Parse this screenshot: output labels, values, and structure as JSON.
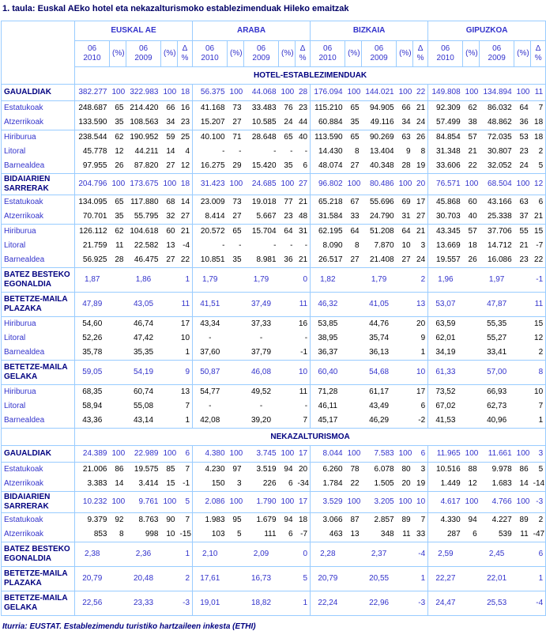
{
  "title": "1. taula: Euskal AEko hotel eta nekazalturismoko establezimenduak Hileko emaitzak",
  "source_note": "Iturria: EUSTAT. Establezimendu turistiko hartzaileen inkesta (ETHI)",
  "colors": {
    "title_navy": "#000066",
    "section_navy": "#000080",
    "accent_blue": "#3333CC",
    "value_black": "#000000",
    "border_light_blue": "#99CCFF",
    "background": "#FFFFFF"
  },
  "chart_data": {
    "type": "table",
    "title": "1. taula: Euskal AEko hotel eta nekazalturismoko establezimenduak Hileko emaitzak",
    "source": "Iturria: EUSTAT. Establezimendu turistiko hartzaileen inkesta (ETHI)",
    "region_groups": [
      "EUSKAL AE",
      "ARABA",
      "BIZKAIA",
      "GIPUZKOA"
    ],
    "sub_columns": [
      "06\n2010",
      "(%)",
      "06\n2009",
      "(%)",
      "Δ %"
    ],
    "sections": [
      {
        "banner": "HOTEL-ESTABLEZIMENDUAK",
        "rows": [
          {
            "label": "GAUALDIAK",
            "kind": "sec",
            "fmt": "int",
            "top": true,
            "values": [
              "382.277",
              "100",
              "322.983",
              "100",
              "18",
              "56.375",
              "100",
              "44.068",
              "100",
              "28",
              "176.094",
              "100",
              "144.021",
              "100",
              "22",
              "149.808",
              "100",
              "134.894",
              "100",
              "11"
            ]
          },
          {
            "label": "Estatukoak",
            "kind": "sub",
            "fmt": "int",
            "top": true,
            "values": [
              "248.687",
              "65",
              "214.420",
              "66",
              "16",
              "41.168",
              "73",
              "33.483",
              "76",
              "23",
              "115.210",
              "65",
              "94.905",
              "66",
              "21",
              "92.309",
              "62",
              "86.032",
              "64",
              "7"
            ]
          },
          {
            "label": "Atzerrikoak",
            "kind": "sub",
            "fmt": "int",
            "values": [
              "133.590",
              "35",
              "108.563",
              "34",
              "23",
              "15.207",
              "27",
              "10.585",
              "24",
              "44",
              "60.884",
              "35",
              "49.116",
              "34",
              "24",
              "57.499",
              "38",
              "48.862",
              "36",
              "18"
            ]
          },
          {
            "label": "Hiriburua",
            "kind": "sub",
            "fmt": "int",
            "top": true,
            "values": [
              "238.544",
              "62",
              "190.952",
              "59",
              "25",
              "40.100",
              "71",
              "28.648",
              "65",
              "40",
              "113.590",
              "65",
              "90.269",
              "63",
              "26",
              "84.854",
              "57",
              "72.035",
              "53",
              "18"
            ]
          },
          {
            "label": "Litoral",
            "kind": "sub",
            "fmt": "int",
            "values": [
              "45.778",
              "12",
              "44.211",
              "14",
              "4",
              "-",
              "-",
              "-",
              "-",
              "-",
              "14.430",
              "8",
              "13.404",
              "9",
              "8",
              "31.348",
              "21",
              "30.807",
              "23",
              "2"
            ]
          },
          {
            "label": "Barnealdea",
            "kind": "sub",
            "fmt": "int",
            "values": [
              "97.955",
              "26",
              "87.820",
              "27",
              "12",
              "16.275",
              "29",
              "15.420",
              "35",
              "6",
              "48.074",
              "27",
              "40.348",
              "28",
              "19",
              "33.606",
              "22",
              "32.052",
              "24",
              "5"
            ]
          },
          {
            "label": "BIDAIARIEN SARRERAK",
            "kind": "sec",
            "fmt": "int",
            "top": true,
            "values": [
              "204.796",
              "100",
              "173.675",
              "100",
              "18",
              "31.423",
              "100",
              "24.685",
              "100",
              "27",
              "96.802",
              "100",
              "80.486",
              "100",
              "20",
              "76.571",
              "100",
              "68.504",
              "100",
              "12"
            ]
          },
          {
            "label": "Estatukoak",
            "kind": "sub",
            "fmt": "int",
            "top": true,
            "values": [
              "134.095",
              "65",
              "117.880",
              "68",
              "14",
              "23.009",
              "73",
              "19.018",
              "77",
              "21",
              "65.218",
              "67",
              "55.696",
              "69",
              "17",
              "45.868",
              "60",
              "43.166",
              "63",
              "6"
            ]
          },
          {
            "label": "Atzerrikoak",
            "kind": "sub",
            "fmt": "int",
            "values": [
              "70.701",
              "35",
              "55.795",
              "32",
              "27",
              "8.414",
              "27",
              "5.667",
              "23",
              "48",
              "31.584",
              "33",
              "24.790",
              "31",
              "27",
              "30.703",
              "40",
              "25.338",
              "37",
              "21"
            ]
          },
          {
            "label": "Hiriburua",
            "kind": "sub",
            "fmt": "int",
            "top": true,
            "values": [
              "126.112",
              "62",
              "104.618",
              "60",
              "21",
              "20.572",
              "65",
              "15.704",
              "64",
              "31",
              "62.195",
              "64",
              "51.208",
              "64",
              "21",
              "43.345",
              "57",
              "37.706",
              "55",
              "15"
            ]
          },
          {
            "label": "Litoral",
            "kind": "sub",
            "fmt": "int",
            "values": [
              "21.759",
              "11",
              "22.582",
              "13",
              "-4",
              "-",
              "-",
              "-",
              "-",
              "-",
              "8.090",
              "8",
              "7.870",
              "10",
              "3",
              "13.669",
              "18",
              "14.712",
              "21",
              "-7"
            ]
          },
          {
            "label": "Barnealdea",
            "kind": "sub",
            "fmt": "int",
            "values": [
              "56.925",
              "28",
              "46.475",
              "27",
              "22",
              "10.851",
              "35",
              "8.981",
              "36",
              "21",
              "26.517",
              "27",
              "21.408",
              "27",
              "24",
              "19.557",
              "26",
              "16.086",
              "23",
              "22"
            ]
          },
          {
            "label": "BATEZ BESTEKO EGONALDIA",
            "kind": "sec",
            "fmt": "dec",
            "top": true,
            "values": [
              "1,87",
              "1,86",
              "1",
              "1,79",
              "1,79",
              "0",
              "1,82",
              "1,79",
              "2",
              "1,96",
              "1,97",
              "-1"
            ]
          },
          {
            "label": "BETETZE-MAILA PLAZAKA",
            "kind": "sec",
            "fmt": "dec",
            "top": true,
            "values": [
              "47,89",
              "43,05",
              "11",
              "41,51",
              "37,49",
              "11",
              "46,32",
              "41,05",
              "13",
              "53,07",
              "47,87",
              "11"
            ]
          },
          {
            "label": "Hiriburua",
            "kind": "sub",
            "fmt": "dec",
            "top": true,
            "values": [
              "54,60",
              "46,74",
              "17",
              "43,34",
              "37,33",
              "16",
              "53,85",
              "44,76",
              "20",
              "63,59",
              "55,35",
              "15"
            ]
          },
          {
            "label": "Litoral",
            "kind": "sub",
            "fmt": "dec",
            "values": [
              "52,26",
              "47,42",
              "10",
              "-",
              "-",
              "-",
              "38,95",
              "35,74",
              "9",
              "62,01",
              "55,27",
              "12"
            ]
          },
          {
            "label": "Barnealdea",
            "kind": "sub",
            "fmt": "dec",
            "values": [
              "35,78",
              "35,35",
              "1",
              "37,60",
              "37,79",
              "-1",
              "36,37",
              "36,13",
              "1",
              "34,19",
              "33,41",
              "2"
            ]
          },
          {
            "label": "BETETZE-MAILA GELAKA",
            "kind": "sec",
            "fmt": "dec",
            "top": true,
            "values": [
              "59,05",
              "54,19",
              "9",
              "50,87",
              "46,08",
              "10",
              "60,40",
              "54,68",
              "10",
              "61,33",
              "57,00",
              "8"
            ]
          },
          {
            "label": "Hiriburua",
            "kind": "sub",
            "fmt": "dec",
            "top": true,
            "values": [
              "68,35",
              "60,74",
              "13",
              "54,77",
              "49,52",
              "11",
              "71,28",
              "61,17",
              "17",
              "73,52",
              "66,93",
              "10"
            ]
          },
          {
            "label": "Litoral",
            "kind": "sub",
            "fmt": "dec",
            "values": [
              "58,94",
              "55,08",
              "7",
              "-",
              "-",
              "-",
              "46,11",
              "43,49",
              "6",
              "67,02",
              "62,73",
              "7"
            ]
          },
          {
            "label": "Barnealdea",
            "kind": "sub",
            "fmt": "dec",
            "values": [
              "43,36",
              "43,14",
              "1",
              "42,08",
              "39,20",
              "7",
              "45,17",
              "46,29",
              "-2",
              "41,53",
              "40,96",
              "1"
            ]
          }
        ]
      },
      {
        "banner": "NEKAZALTURISMOA",
        "rows": [
          {
            "label": "GAUALDIAK",
            "kind": "sec",
            "fmt": "int",
            "top": true,
            "values": [
              "24.389",
              "100",
              "22.989",
              "100",
              "6",
              "4.380",
              "100",
              "3.745",
              "100",
              "17",
              "8.044",
              "100",
              "7.583",
              "100",
              "6",
              "11.965",
              "100",
              "11.661",
              "100",
              "3"
            ]
          },
          {
            "label": "Estatukoak",
            "kind": "sub",
            "fmt": "int",
            "top": true,
            "values": [
              "21.006",
              "86",
              "19.575",
              "85",
              "7",
              "4.230",
              "97",
              "3.519",
              "94",
              "20",
              "6.260",
              "78",
              "6.078",
              "80",
              "3",
              "10.516",
              "88",
              "9.978",
              "86",
              "5"
            ]
          },
          {
            "label": "Atzerrikoak",
            "kind": "sub",
            "fmt": "int",
            "values": [
              "3.383",
              "14",
              "3.414",
              "15",
              "-1",
              "150",
              "3",
              "226",
              "6",
              "-34",
              "1.784",
              "22",
              "1.505",
              "20",
              "19",
              "1.449",
              "12",
              "1.683",
              "14",
              "-14"
            ]
          },
          {
            "label": "BIDAIARIEN SARRERAK",
            "kind": "sec",
            "fmt": "int",
            "top": true,
            "values": [
              "10.232",
              "100",
              "9.761",
              "100",
              "5",
              "2.086",
              "100",
              "1.790",
              "100",
              "17",
              "3.529",
              "100",
              "3.205",
              "100",
              "10",
              "4.617",
              "100",
              "4.766",
              "100",
              "-3"
            ]
          },
          {
            "label": "Estatukoak",
            "kind": "sub",
            "fmt": "int",
            "top": true,
            "values": [
              "9.379",
              "92",
              "8.763",
              "90",
              "7",
              "1.983",
              "95",
              "1.679",
              "94",
              "18",
              "3.066",
              "87",
              "2.857",
              "89",
              "7",
              "4.330",
              "94",
              "4.227",
              "89",
              "2"
            ]
          },
          {
            "label": "Atzerrikoak",
            "kind": "sub",
            "fmt": "int",
            "values": [
              "853",
              "8",
              "998",
              "10",
              "-15",
              "103",
              "5",
              "111",
              "6",
              "-7",
              "463",
              "13",
              "348",
              "11",
              "33",
              "287",
              "6",
              "539",
              "11",
              "-47"
            ]
          },
          {
            "label": "BATEZ BESTEKO EGONALDIA",
            "kind": "sec",
            "fmt": "dec",
            "top": true,
            "values": [
              "2,38",
              "2,36",
              "1",
              "2,10",
              "2,09",
              "0",
              "2,28",
              "2,37",
              "-4",
              "2,59",
              "2,45",
              "6"
            ]
          },
          {
            "label": "BETETZE-MAILA PLAZAKA",
            "kind": "sec",
            "fmt": "dec",
            "top": true,
            "values": [
              "20,79",
              "20,48",
              "2",
              "17,61",
              "16,73",
              "5",
              "20,79",
              "20,55",
              "1",
              "22,27",
              "22,01",
              "1"
            ]
          },
          {
            "label": "BETETZE-MAILA GELAKA",
            "kind": "sec",
            "fmt": "dec",
            "top": true,
            "values": [
              "22,56",
              "23,33",
              "-3",
              "19,01",
              "18,82",
              "1",
              "22,24",
              "22,96",
              "-3",
              "24,47",
              "25,53",
              "-4"
            ]
          }
        ]
      }
    ]
  }
}
